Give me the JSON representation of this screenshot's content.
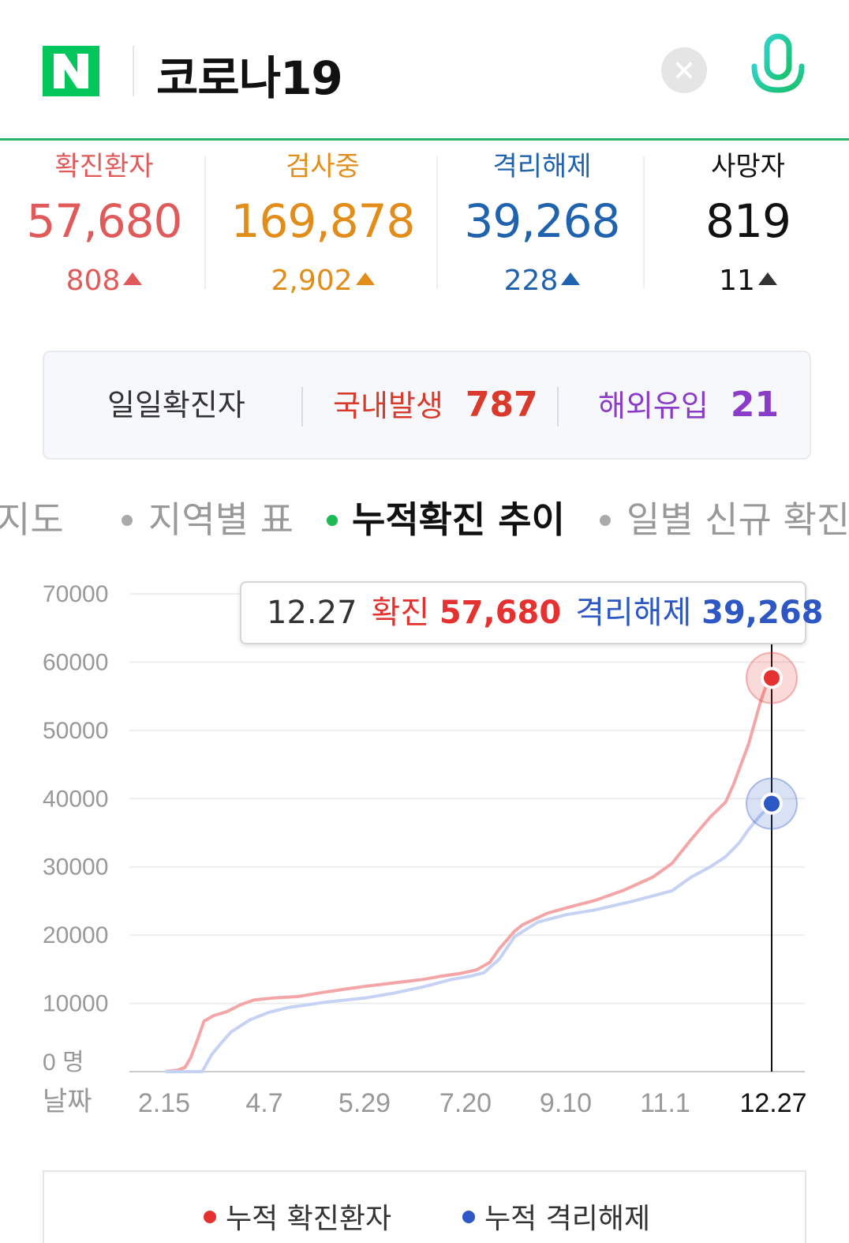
{
  "search": {
    "query": "코로나19"
  },
  "colors": {
    "brand": "#03c75a",
    "confirmed": "#e5312f",
    "testing": "#e28d1a",
    "released": "#1f62ad",
    "deaths": "#111111",
    "overseas": "#8a3cc8",
    "active_tab": "#1db954"
  },
  "stats": [
    {
      "label": "확진환자",
      "value": "57,680",
      "delta": "808"
    },
    {
      "label": "검사중",
      "value": "169,878",
      "delta": "2,902"
    },
    {
      "label": "격리해제",
      "value": "39,268",
      "delta": "228"
    },
    {
      "label": "사망자",
      "value": "819",
      "delta": "11"
    }
  ],
  "daily": {
    "label": "일일확진자",
    "domestic_label": "국내발생",
    "domestic_value": "787",
    "overseas_label": "해외유입",
    "overseas_value": "21"
  },
  "tabs": [
    {
      "label": "지도",
      "display": "지도"
    },
    {
      "label": "지역별 표"
    },
    {
      "label": "누적확진 추이",
      "active": true
    },
    {
      "label": "일별 신규 확진"
    }
  ],
  "tooltip": {
    "date": "12.27",
    "confirmed_label": "확진",
    "confirmed_value": "57,680",
    "released_label": "격리해제",
    "released_value": "39,268"
  },
  "chart_data": {
    "type": "line",
    "xlabel": "날짜",
    "x_ticks": [
      "2.15",
      "4.7",
      "5.29",
      "7.20",
      "9.10",
      "11.1",
      "12.27"
    ],
    "y_ticks": [
      "70000",
      "60000",
      "50000",
      "40000",
      "30000",
      "20000",
      "10000",
      "0 명"
    ],
    "ylim": [
      0,
      70000
    ],
    "x_range_days": [
      46,
      362
    ],
    "grid": true,
    "legend_position": "bottom",
    "series": [
      {
        "name": "누적 확진환자",
        "color": "#f4a6a6",
        "x": [
          46,
          52,
          56,
          59,
          63,
          66,
          71,
          78,
          85,
          92,
          102,
          115,
          128,
          140,
          150,
          165,
          180,
          190,
          200,
          208,
          215,
          220,
          228,
          232,
          238,
          245,
          255,
          270,
          285,
          300,
          310,
          320,
          330,
          338,
          342,
          346,
          350,
          353,
          356,
          359,
          362
        ],
        "values": [
          30,
          200,
          600,
          2000,
          5000,
          7400,
          8200,
          8800,
          9800,
          10500,
          10800,
          11000,
          11600,
          12100,
          12500,
          13000,
          13500,
          14000,
          14400,
          14900,
          16000,
          18000,
          20600,
          21500,
          22300,
          23200,
          24000,
          25100,
          26600,
          28500,
          30500,
          34000,
          37300,
          39500,
          42000,
          45000,
          48000,
          51000,
          54000,
          56500,
          57680
        ]
      },
      {
        "name": "누적 격리해제",
        "color": "#c6d2f4",
        "x": [
          46,
          60,
          65,
          70,
          75,
          80,
          90,
          100,
          110,
          130,
          150,
          165,
          180,
          195,
          205,
          212,
          220,
          228,
          240,
          255,
          270,
          290,
          310,
          320,
          330,
          338,
          345,
          350,
          355,
          362
        ],
        "values": [
          0,
          0,
          0,
          2500,
          4200,
          5800,
          7600,
          8700,
          9400,
          10200,
          10800,
          11500,
          12400,
          13500,
          14000,
          14500,
          16500,
          19800,
          21900,
          23000,
          23700,
          25000,
          26500,
          28500,
          30000,
          31500,
          33500,
          35500,
          37200,
          39268
        ]
      }
    ],
    "highlight": {
      "x": 362,
      "confirmed": 57680,
      "released": 39268
    }
  },
  "legend": [
    {
      "label": "누적 확진환자",
      "color": "#e5312f"
    },
    {
      "label": "누적 격리해제",
      "color": "#2c57c4"
    }
  ]
}
